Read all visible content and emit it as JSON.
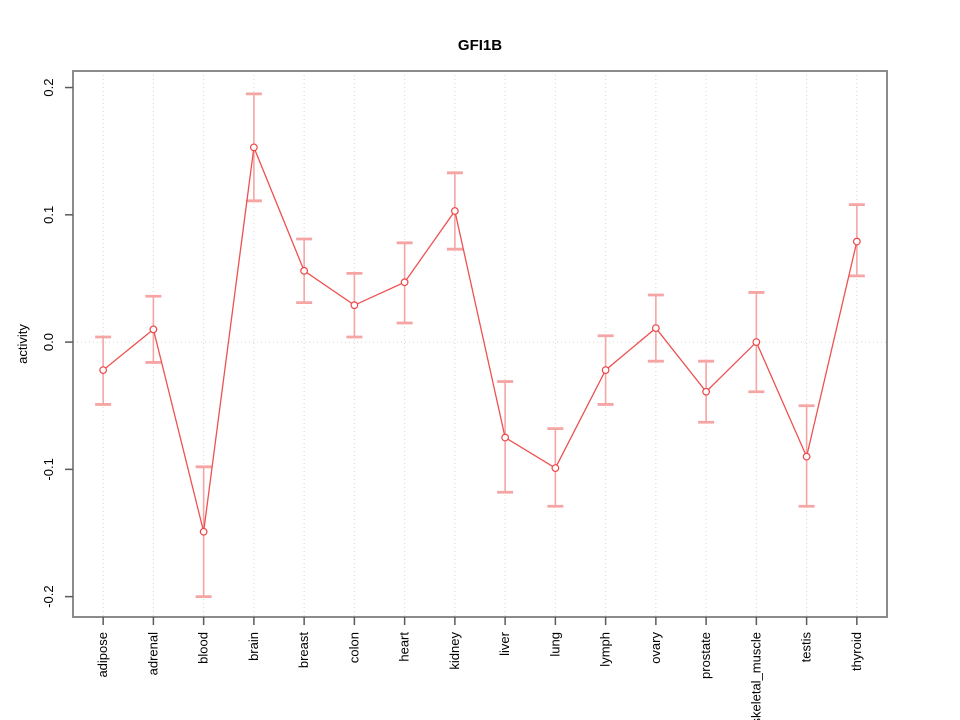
{
  "page": {
    "background": "#ffffff"
  },
  "chart_data": {
    "type": "line",
    "title": "GFI1B",
    "ylabel": "activity",
    "xlabel": "",
    "legend": "none",
    "grid": "dotted vertical per category; dotted horizontal at 0 only",
    "categories": [
      "adipose",
      "adrenal",
      "blood",
      "brain",
      "breast",
      "colon",
      "heart",
      "kidney",
      "liver",
      "lung",
      "lymph",
      "ovary",
      "prostate",
      "skeletal_muscle",
      "testis",
      "thyroid"
    ],
    "series": [
      {
        "name": "activity",
        "values": [
          -0.022,
          0.01,
          -0.149,
          0.153,
          0.056,
          0.029,
          0.047,
          0.103,
          -0.075,
          -0.099,
          -0.022,
          0.011,
          -0.039,
          0.0,
          -0.09,
          0.079
        ],
        "upper": [
          0.004,
          0.036,
          -0.098,
          0.195,
          0.081,
          0.054,
          0.078,
          0.133,
          -0.031,
          -0.068,
          0.005,
          0.037,
          -0.015,
          0.039,
          -0.05,
          0.108
        ],
        "lower": [
          -0.049,
          -0.016,
          -0.2,
          0.111,
          0.031,
          0.004,
          0.015,
          0.073,
          -0.118,
          -0.129,
          -0.049,
          -0.015,
          -0.063,
          -0.039,
          -0.129,
          0.052
        ]
      }
    ],
    "y_ticks": [
      0.2,
      0.1,
      0.0,
      -0.1,
      -0.2
    ],
    "y_tick_labels": [
      "0.2",
      "0.1",
      "0.0",
      "-0.1",
      "-0.2"
    ],
    "ylim": [
      -0.216,
      0.213
    ],
    "xlim": [
      0.4,
      16.6
    ],
    "hgrid_values": [
      0
    ],
    "colors": {
      "line": "#ee5151",
      "point_stroke": "#ee4545",
      "point_fill": "#ffffff",
      "error_bar": "#f6a5a5",
      "grid": "#d4d4d4",
      "box_border": "#8b8b8b",
      "tick": "#5a5a5a",
      "text": "#000000"
    }
  }
}
